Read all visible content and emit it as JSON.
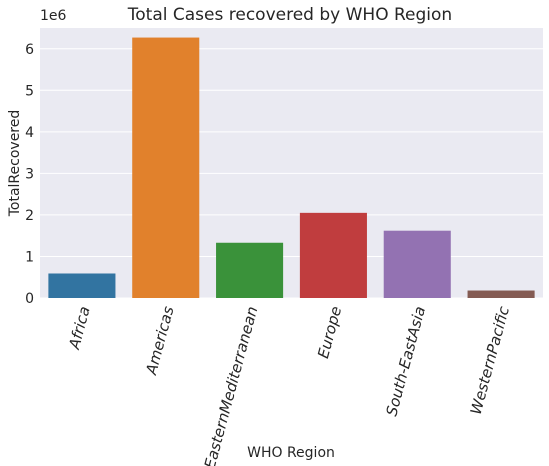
{
  "chart_data": {
    "type": "bar",
    "title": "Total Cases recovered by WHO Region",
    "xlabel": "WHO Region",
    "ylabel": "TotalRecovered",
    "offset_label": "1e6",
    "categories": [
      "Africa",
      "Americas",
      "EasternMediterranean",
      "Europe",
      "South-EastAsia",
      "WesternPacific"
    ],
    "values": [
      0.59,
      6.27,
      1.33,
      2.05,
      1.62,
      0.18
    ],
    "y_unit_multiplier": 1000000,
    "ylim": [
      0,
      6.5
    ],
    "yticks": [
      0,
      1,
      2,
      3,
      4,
      5,
      6
    ],
    "ytick_labels": [
      "0",
      "1",
      "2",
      "3",
      "4",
      "5",
      "6"
    ],
    "colors": [
      "#3274a1",
      "#e1812c",
      "#3a923a",
      "#c03d3e",
      "#9372b2",
      "#845b53"
    ],
    "grid": true,
    "background": "#eaeaf2",
    "legend": "none"
  }
}
